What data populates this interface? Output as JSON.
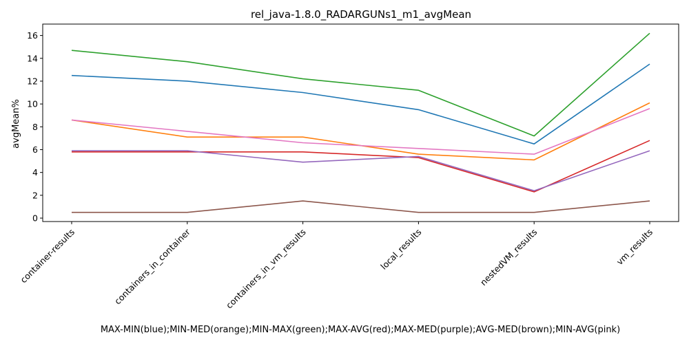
{
  "chart_data": {
    "type": "line",
    "title": "rel_java-1.8.0_RADARGUNs1_m1_avgMean",
    "xlabel": "MAX-MIN(blue);MIN-MED(orange);MIN-MAX(green);MAX-AVG(red);MAX-MED(purple);AVG-MED(brown);MIN-AVG(pink)",
    "ylabel": "avgMean%",
    "categories": [
      "container-results",
      "containers_in_container",
      "containers_in_vm_results",
      "local_results",
      "nestedVM_results",
      "vm_results"
    ],
    "ylim": [
      -0.3,
      17.0
    ],
    "yticks": [
      0,
      2,
      4,
      6,
      8,
      10,
      12,
      14,
      16
    ],
    "grid": false,
    "legend": "none",
    "series": [
      {
        "color": "#1f77b4",
        "values": [
          12.5,
          12.0,
          11.0,
          9.5,
          6.5,
          13.5
        ]
      },
      {
        "color": "#ff7f0e",
        "values": [
          8.6,
          7.1,
          7.1,
          5.6,
          5.1,
          10.1
        ]
      },
      {
        "color": "#2ca02c",
        "values": [
          14.7,
          13.7,
          12.2,
          11.2,
          7.2,
          16.2
        ]
      },
      {
        "color": "#d62728",
        "values": [
          5.8,
          5.8,
          5.8,
          5.3,
          2.3,
          6.8
        ]
      },
      {
        "color": "#9467bd",
        "values": [
          5.9,
          5.9,
          4.9,
          5.4,
          2.4,
          5.9
        ]
      },
      {
        "color": "#8c564b",
        "values": [
          0.5,
          0.5,
          1.5,
          0.5,
          0.5,
          1.5
        ]
      },
      {
        "color": "#e377c2",
        "values": [
          8.6,
          7.6,
          6.6,
          6.1,
          5.6,
          9.6
        ]
      }
    ]
  }
}
